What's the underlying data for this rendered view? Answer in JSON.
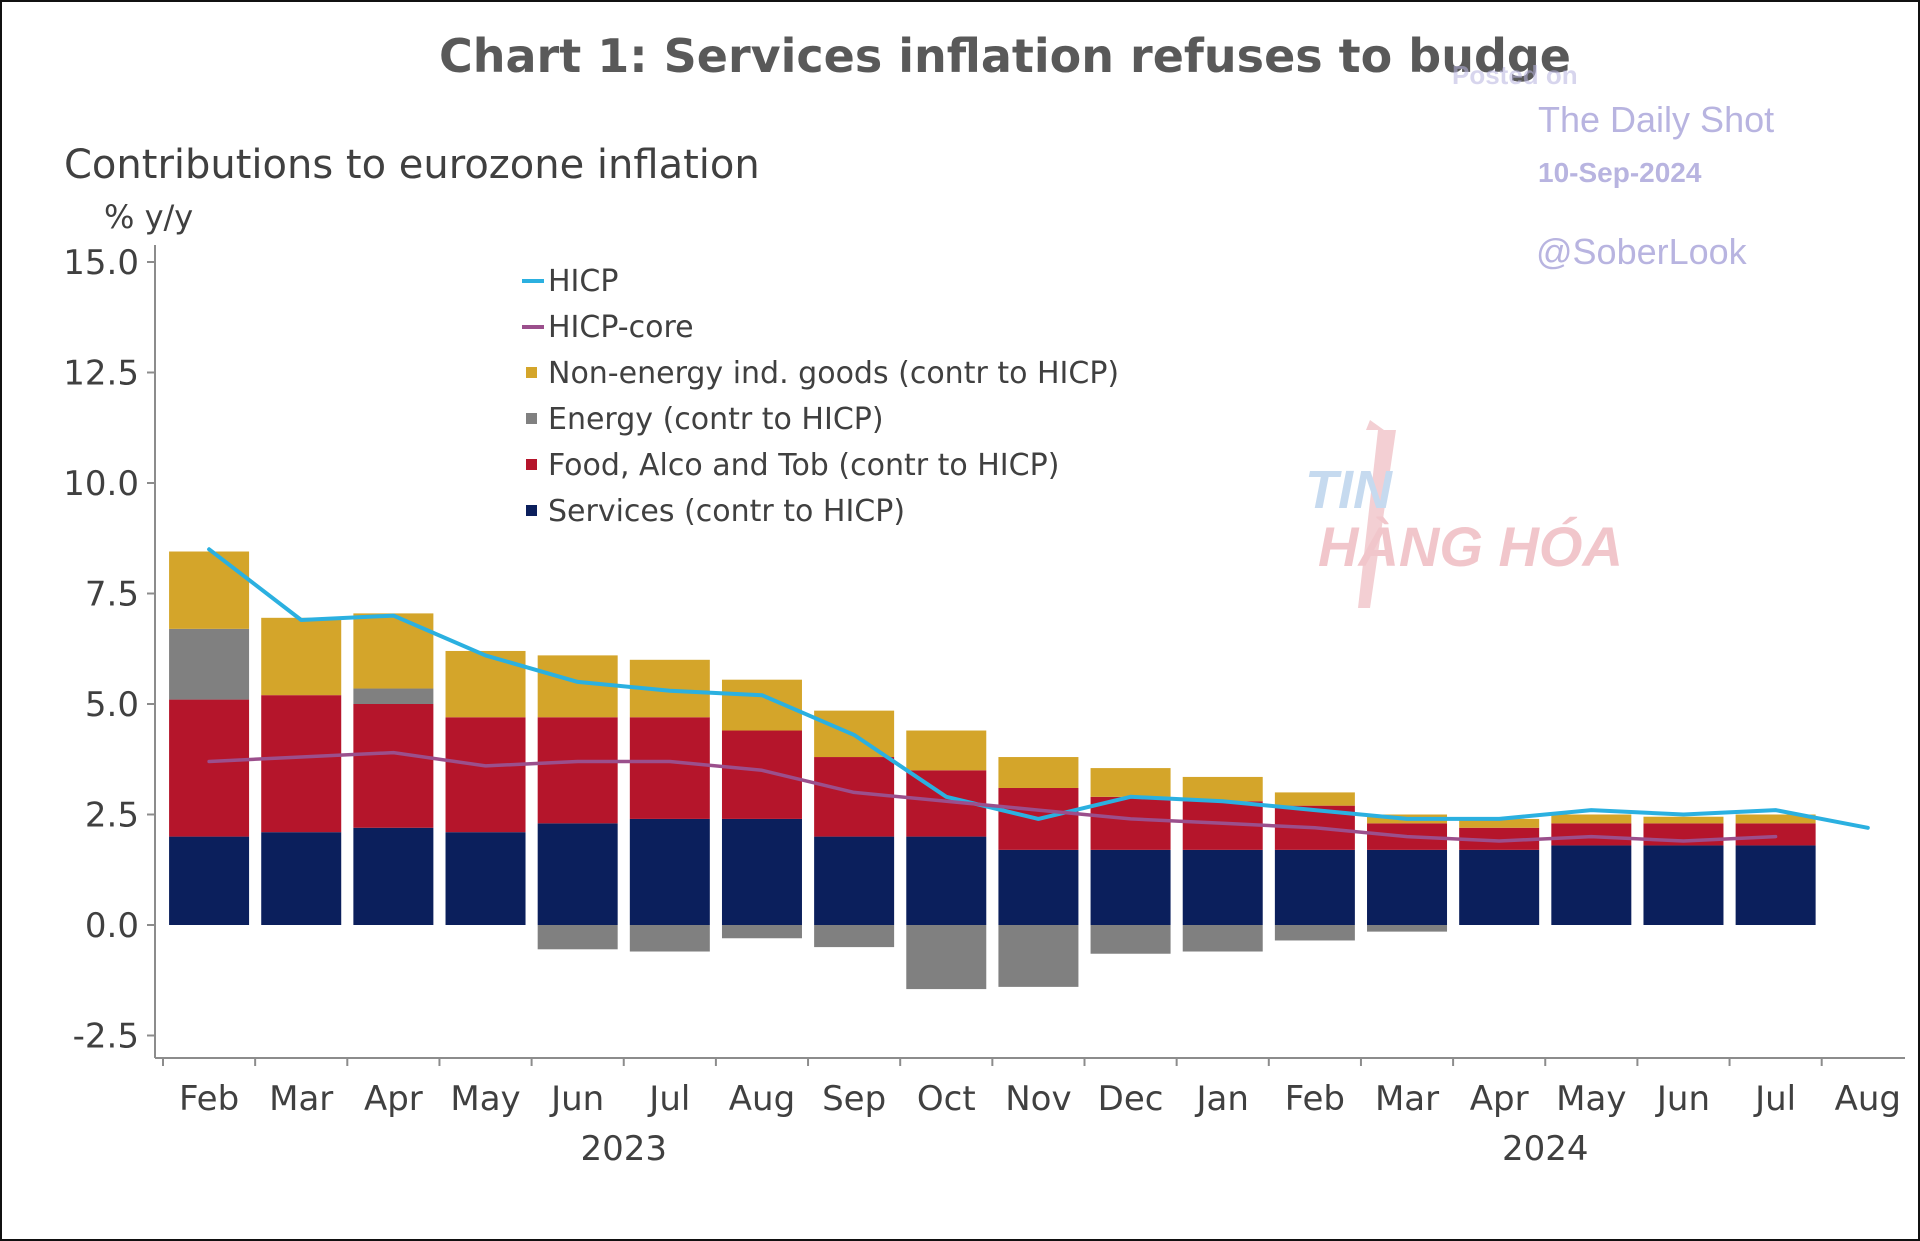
{
  "chart_data": {
    "type": "bar",
    "stacked": true,
    "title": "Chart 1: Services inflation refuses to budge",
    "subtitle": "Contributions to eurozone inflation",
    "ylabel": "% y/y",
    "ylim": [
      -3.0,
      15.3
    ],
    "yticks": [
      "15.0",
      "12.5",
      "10.0",
      "7.5",
      "5.0",
      "2.5",
      "0.0",
      "-2.5"
    ],
    "ytick_values": [
      15.0,
      12.5,
      10.0,
      7.5,
      5.0,
      2.5,
      0.0,
      -2.5
    ],
    "categories": [
      "Feb",
      "Mar",
      "Apr",
      "May",
      "Jun",
      "Jul",
      "Aug",
      "Sep",
      "Oct",
      "Nov",
      "Dec",
      "Jan",
      "Feb",
      "Mar",
      "Apr",
      "May",
      "Jun",
      "Jul",
      "Aug"
    ],
    "year_labels": [
      {
        "label": "2023",
        "category_index": 4.5
      },
      {
        "label": "2024",
        "category_index": 14.5
      }
    ],
    "grid": false,
    "legend_position": "top-center",
    "series": [
      {
        "name": "Services (contr to HICP)",
        "kind": "bar",
        "color": "#0b1f5c",
        "values": [
          2.0,
          2.1,
          2.2,
          2.1,
          2.3,
          2.4,
          2.4,
          2.0,
          2.0,
          1.7,
          1.7,
          1.7,
          1.7,
          1.7,
          1.7,
          1.8,
          1.8,
          1.8,
          null
        ]
      },
      {
        "name": "Food, Alco and Tob (contr to HICP)",
        "kind": "bar",
        "color": "#b5152b",
        "values": [
          3.1,
          3.1,
          2.8,
          2.6,
          2.4,
          2.3,
          2.0,
          1.8,
          1.5,
          1.4,
          1.2,
          1.1,
          1.0,
          0.6,
          0.5,
          0.5,
          0.5,
          0.5,
          null
        ]
      },
      {
        "name": "Energy (contr to HICP)",
        "kind": "bar",
        "color": "#808080",
        "values": [
          1.6,
          0.0,
          0.35,
          0.0,
          -0.55,
          -0.6,
          -0.3,
          -0.5,
          -1.45,
          -1.4,
          -0.65,
          -0.6,
          -0.35,
          -0.15,
          0.0,
          0.0,
          0.0,
          0.0,
          null
        ]
      },
      {
        "name": "Non-energy ind. goods (contr to HICP)",
        "kind": "bar",
        "color": "#d4a52a",
        "values": [
          1.75,
          1.75,
          1.7,
          1.5,
          1.4,
          1.3,
          1.15,
          1.05,
          0.9,
          0.7,
          0.65,
          0.55,
          0.3,
          0.2,
          0.2,
          0.2,
          0.15,
          0.2,
          null
        ]
      },
      {
        "name": "HICP",
        "kind": "line",
        "color": "#2bb0e0",
        "values": [
          8.5,
          6.9,
          7.0,
          6.1,
          5.5,
          5.3,
          5.2,
          4.3,
          2.9,
          2.4,
          2.9,
          2.8,
          2.6,
          2.4,
          2.4,
          2.6,
          2.5,
          2.6,
          2.2
        ]
      },
      {
        "name": "HICP-core",
        "kind": "line",
        "color": "#9b4f8c",
        "values": [
          3.7,
          3.8,
          3.9,
          3.6,
          3.7,
          3.7,
          3.5,
          3.0,
          2.8,
          2.6,
          2.4,
          2.3,
          2.2,
          2.0,
          1.9,
          2.0,
          1.9,
          2.0,
          null
        ]
      }
    ]
  },
  "watermark": {
    "posted_on": "Posted on",
    "source_name": "The Daily Shot",
    "date": "10-Sep-2024",
    "handle": "@SoberLook"
  },
  "logo": {
    "line1": "TIN",
    "line2": "HÀNG HÓA"
  },
  "colors": {
    "axis": "#7f7f7f",
    "text": "#404040",
    "title": "#595959"
  }
}
